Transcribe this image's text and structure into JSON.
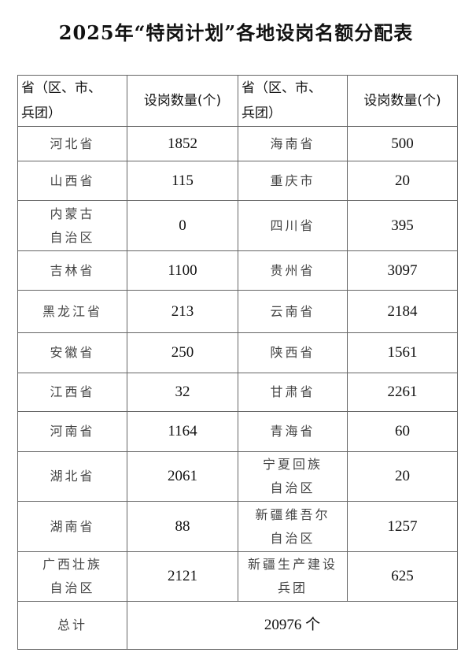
{
  "title": "2025年“特岗计划”各地设岗名额分配表",
  "headers": {
    "region": "省（区、市、\n兵团）",
    "count": "设岗数量(个)"
  },
  "rows": [
    {
      "l_name": "河北省",
      "l_count": "1852",
      "r_name": "海南省",
      "r_count": "500"
    },
    {
      "l_name": "山西省",
      "l_count": "115",
      "r_name": "重庆市",
      "r_count": "20"
    },
    {
      "l_name": "内蒙古\n自治区",
      "l_count": "0",
      "r_name": "四川省",
      "r_count": "395"
    },
    {
      "l_name": "吉林省",
      "l_count": "1100",
      "r_name": "贵州省",
      "r_count": "3097"
    },
    {
      "l_name": "黑龙江省",
      "l_count": "213",
      "r_name": "云南省",
      "r_count": "2184"
    },
    {
      "l_name": "安徽省",
      "l_count": "250",
      "r_name": "陕西省",
      "r_count": "1561"
    },
    {
      "l_name": "江西省",
      "l_count": "32",
      "r_name": "甘肃省",
      "r_count": "2261"
    },
    {
      "l_name": "河南省",
      "l_count": "1164",
      "r_name": "青海省",
      "r_count": "60"
    },
    {
      "l_name": "湖北省",
      "l_count": "2061",
      "r_name": "宁夏回族\n自治区",
      "r_count": "20"
    },
    {
      "l_name": "湖南省",
      "l_count": "88",
      "r_name": "新疆维吾尔\n自治区",
      "r_count": "1257"
    },
    {
      "l_name": "广西壮族\n自治区",
      "l_count": "2121",
      "r_name": "新疆生产建设\n兵团",
      "r_count": "625"
    }
  ],
  "total": {
    "label": "总计",
    "value": "20976 个"
  }
}
